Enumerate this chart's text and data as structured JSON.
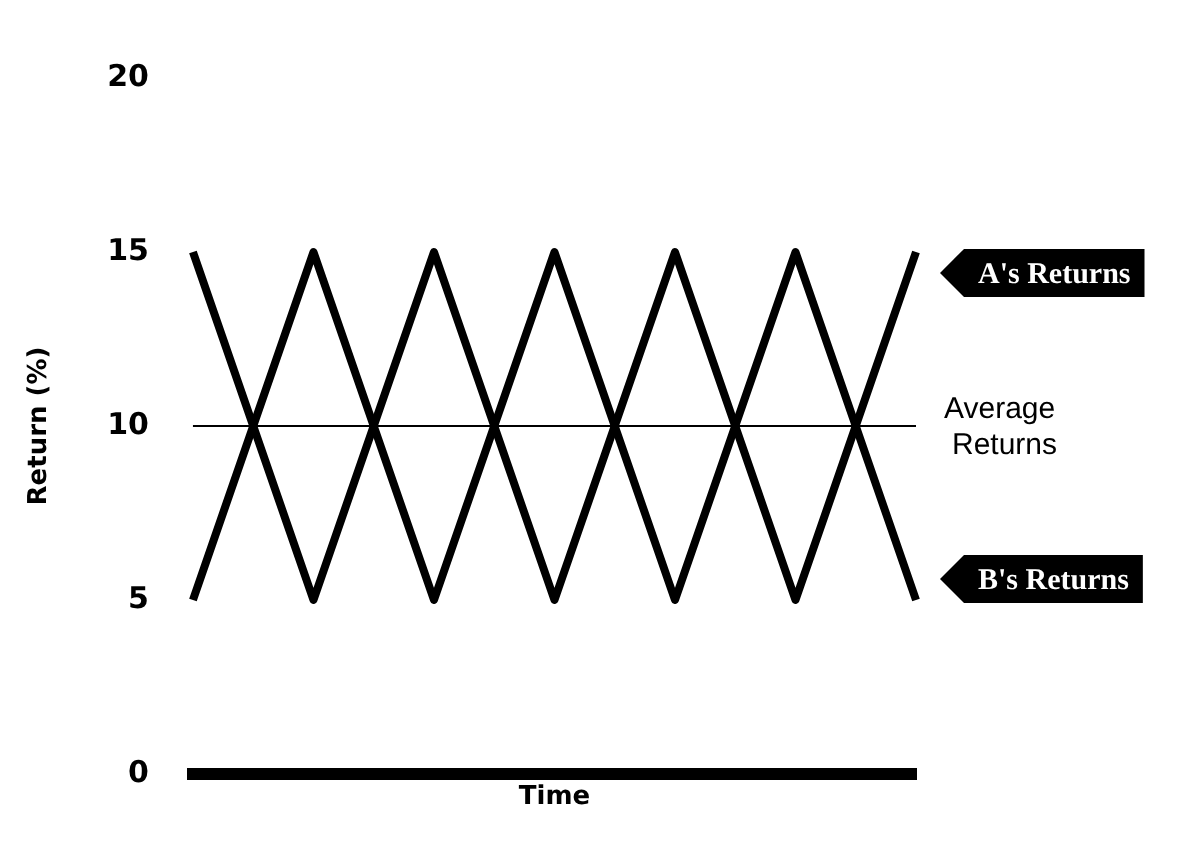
{
  "chart_data": {
    "type": "line",
    "xlabel": "Time",
    "ylabel": "Return (%)",
    "categories": [
      null,
      null,
      null,
      null,
      null,
      null,
      null
    ],
    "series": [
      {
        "name": "A's Returns",
        "color": "#000000",
        "values": [
          15,
          5,
          15,
          5,
          15,
          5,
          15
        ]
      },
      {
        "name": "B's Returns",
        "color": "#000000",
        "values": [
          5,
          15,
          5,
          15,
          5,
          15,
          5
        ]
      }
    ],
    "ylim": [
      0,
      20
    ],
    "yticks": [
      0,
      5,
      10,
      15,
      20
    ],
    "ref_lines": [
      {
        "axis": "y",
        "value": 10,
        "label": "Average Returns",
        "color": "#000000"
      }
    ],
    "grid": false,
    "legend": false,
    "tick_labels": "y",
    "marker": "none",
    "line_style": "solid"
  }
}
